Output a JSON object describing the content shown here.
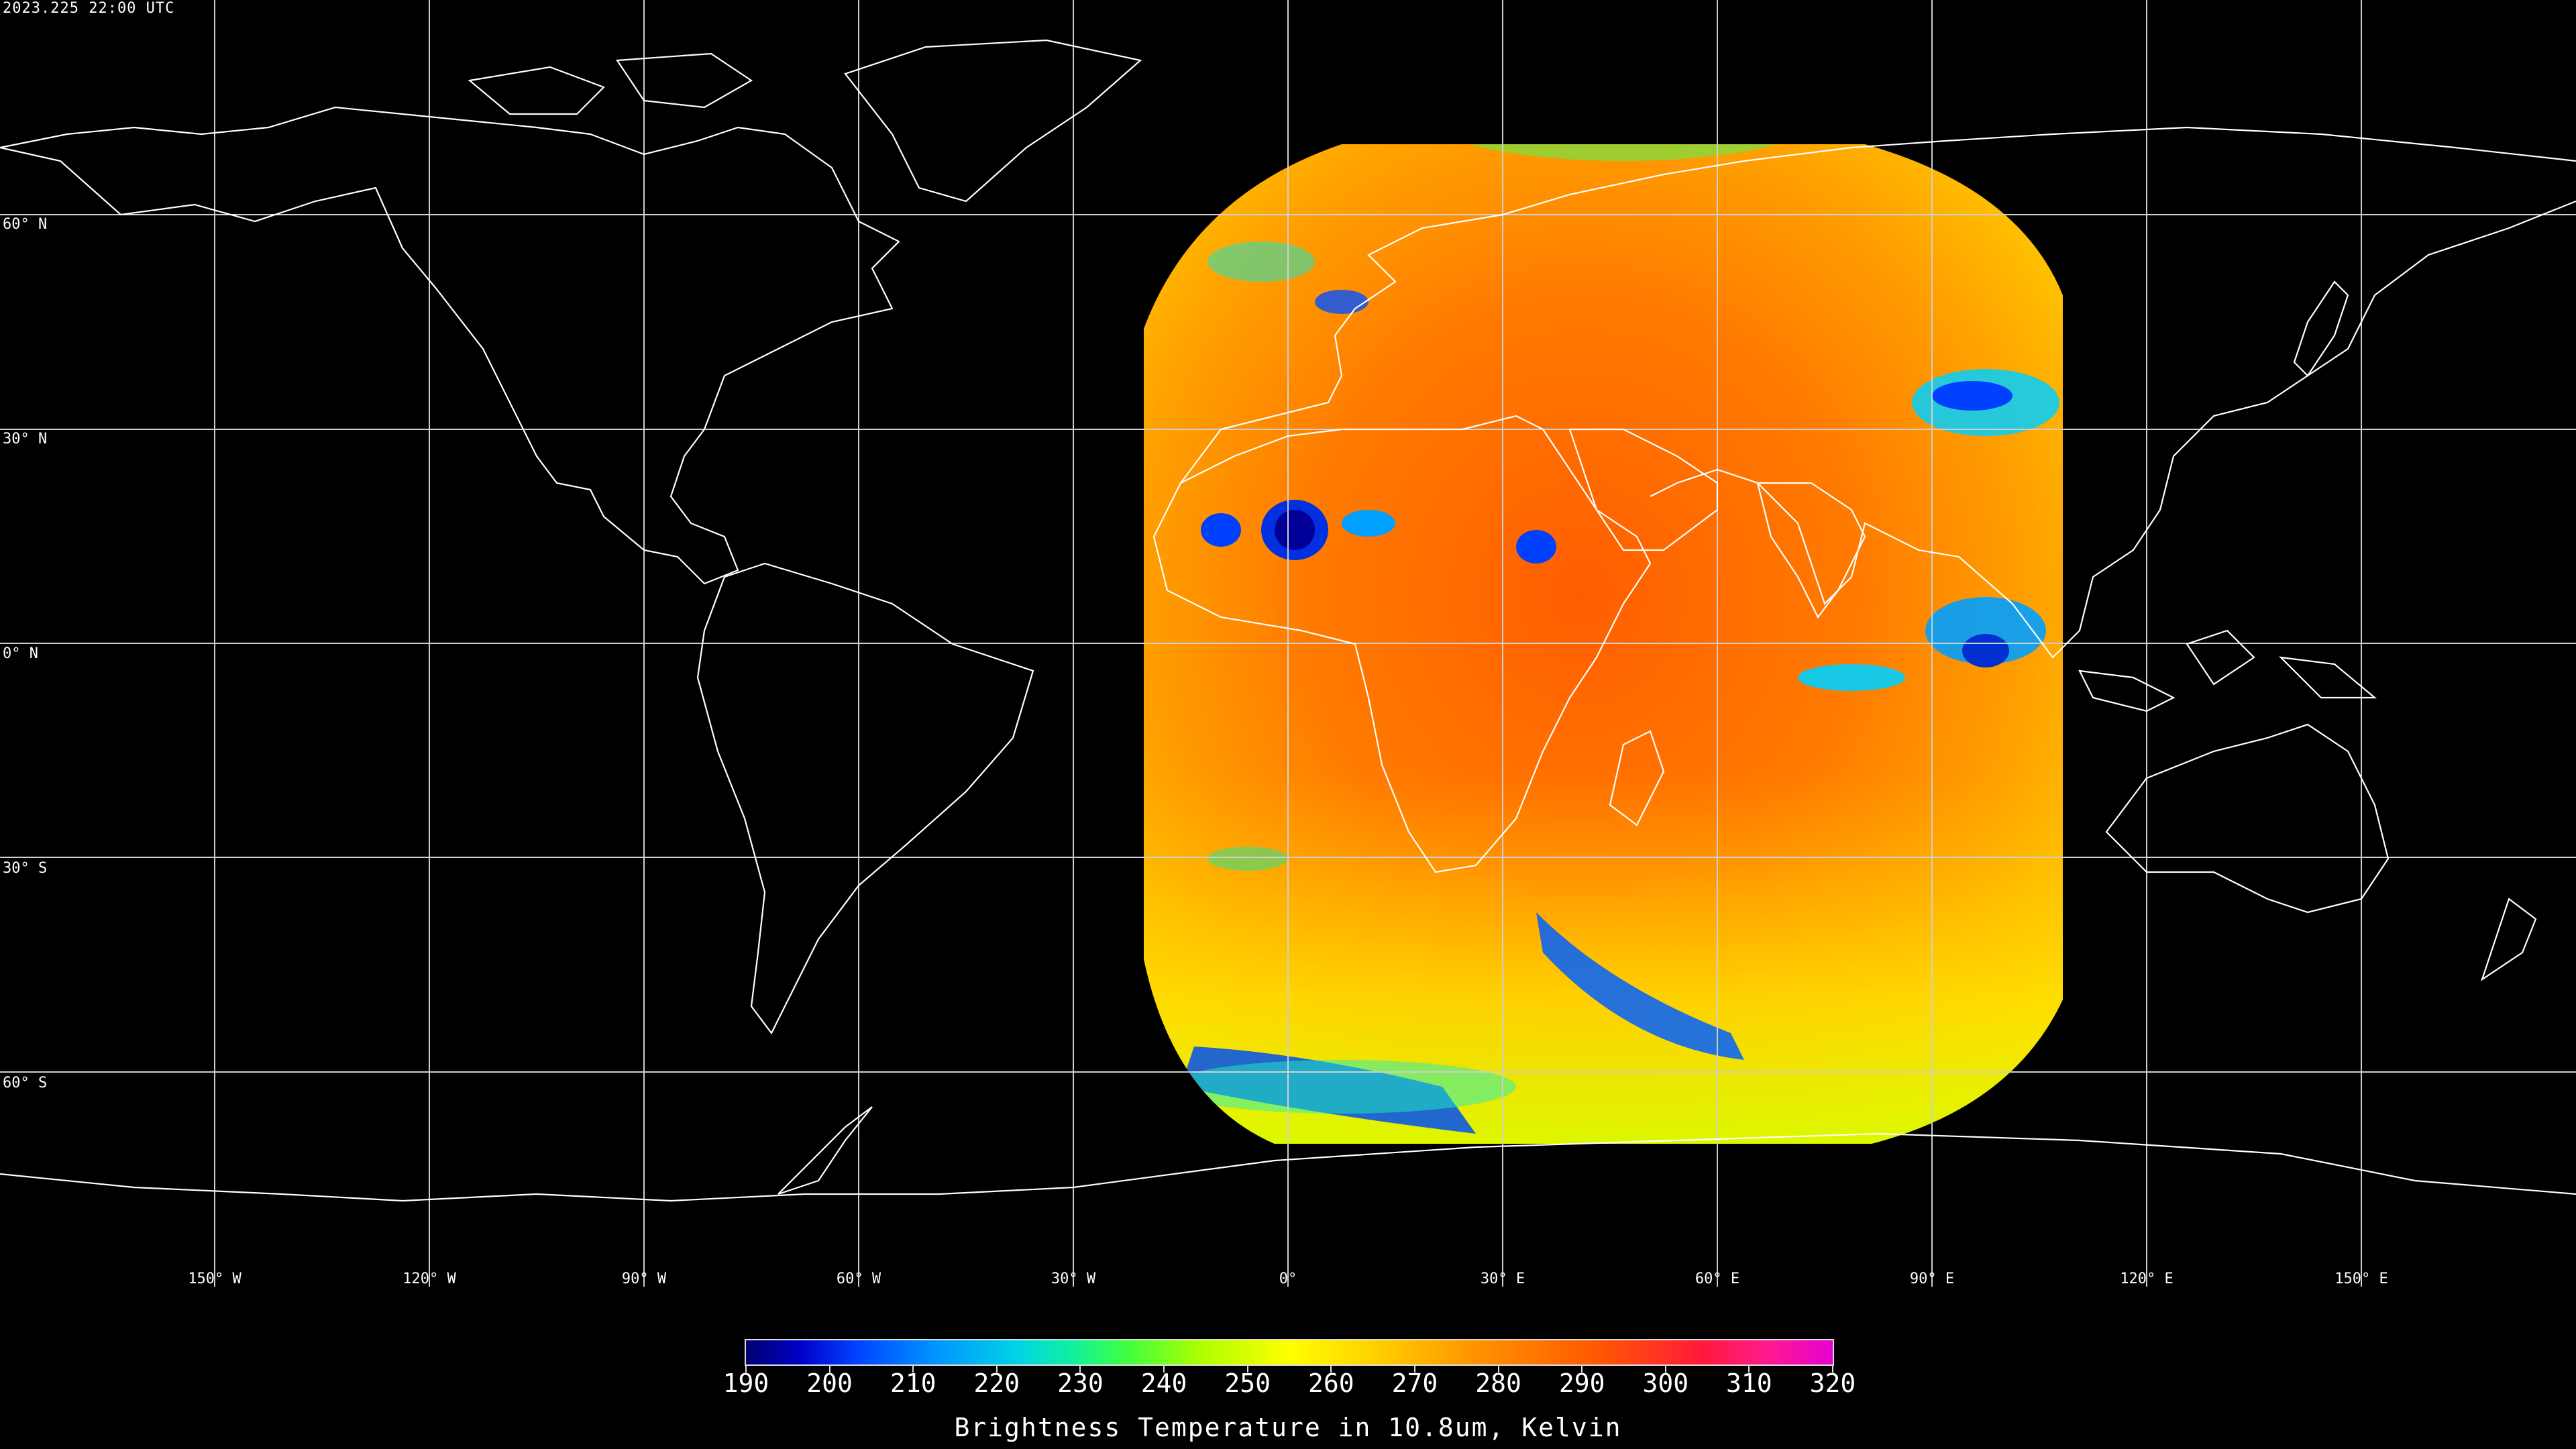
{
  "timestamp": "2023.225 22:00 UTC",
  "map": {
    "lat_labels": [
      "60° N",
      "30° N",
      "0° N",
      "30° S",
      "60° S"
    ],
    "lon_labels": [
      "150° W",
      "120° W",
      "90° W",
      "60° W",
      "30° W",
      "0°",
      "30° E",
      "60° E",
      "90° E",
      "120° E",
      "150° E"
    ],
    "projection": "equirectangular",
    "lat_range": [
      -90,
      90
    ],
    "lon_range": [
      -180,
      180
    ],
    "data_extent_lon": [
      -20,
      110
    ],
    "data_extent_lat": [
      -70,
      70
    ]
  },
  "colorbar": {
    "tick_labels": [
      "190",
      "200",
      "210",
      "220",
      "230",
      "240",
      "250",
      "260",
      "270",
      "280",
      "290",
      "300",
      "310",
      "320"
    ],
    "title": "Brightness Temperature in 10.8um, Kelvin",
    "min": 190,
    "max": 320
  },
  "colors": {
    "background": "#000000",
    "coastline": "#ffffff",
    "grid": "#cfcfcf",
    "warm": "#ff7a00",
    "cold": "#0030e0"
  }
}
